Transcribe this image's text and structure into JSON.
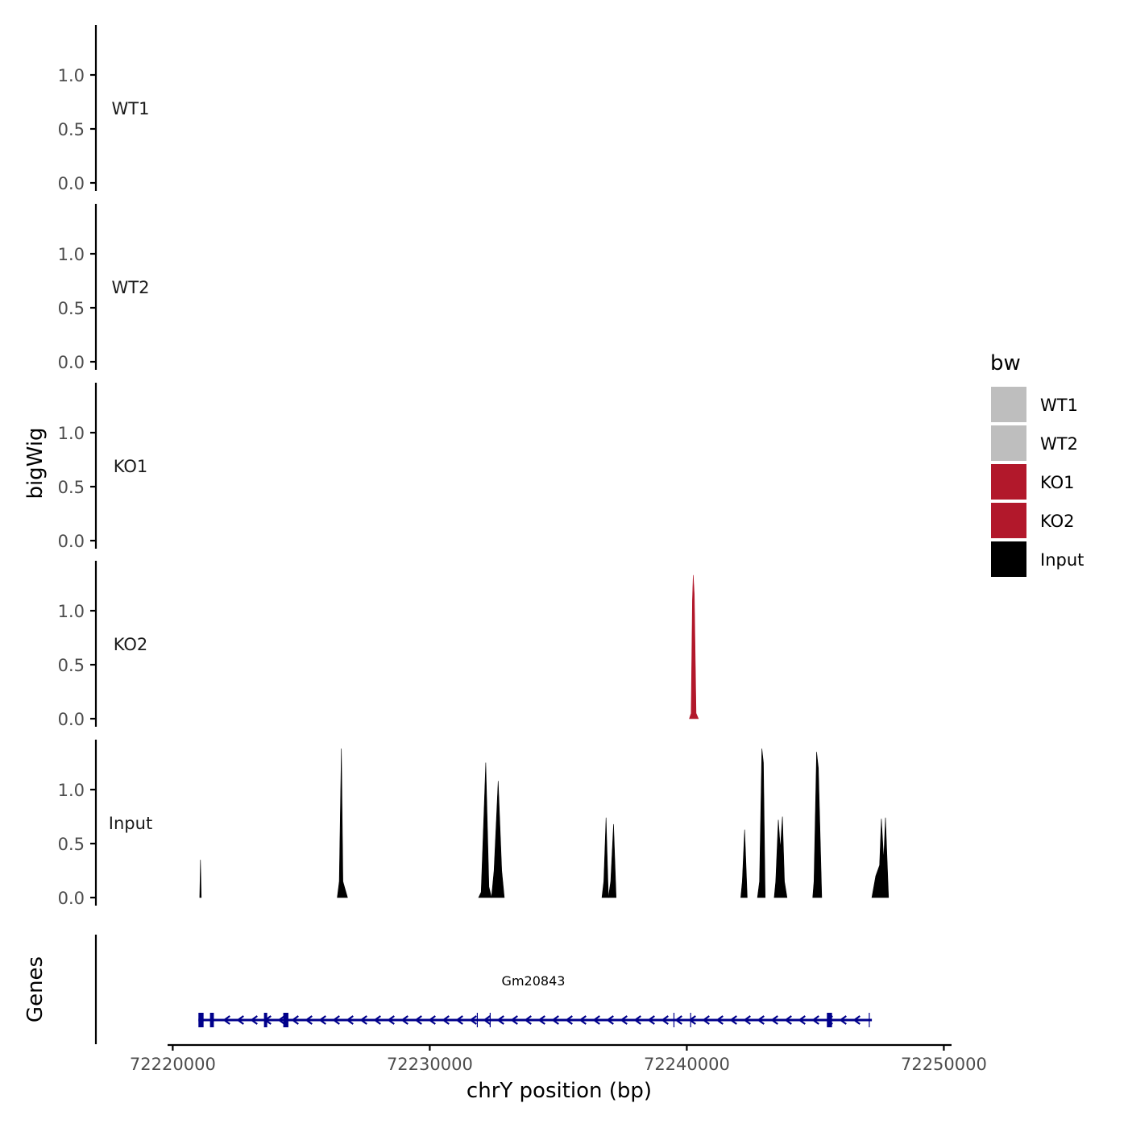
{
  "chart_data": {
    "type": "area",
    "xlabel": "chrY position (bp)",
    "ylabel": "bigWig",
    "genes_label": "Genes",
    "x_range": [
      72219800,
      72250300
    ],
    "x_ticks": [
      72220000,
      72230000,
      72240000,
      72250000
    ],
    "y_range": [
      0,
      1.45
    ],
    "y_ticks": [
      0.0,
      0.5,
      1.0
    ],
    "y_tick_labels": [
      "0.0",
      "0.5",
      "1.0"
    ],
    "legend": {
      "title": "bw",
      "items": [
        {
          "name": "WT1",
          "color": "#bebebe"
        },
        {
          "name": "WT2",
          "color": "#bebebe"
        },
        {
          "name": "KO1",
          "color": "#b2182b"
        },
        {
          "name": "KO2",
          "color": "#b2182b"
        },
        {
          "name": "Input",
          "color": "#000000"
        }
      ]
    },
    "series": [
      {
        "name": "WT1",
        "color": "#bebebe",
        "peaks": []
      },
      {
        "name": "WT2",
        "color": "#bebebe",
        "peaks": []
      },
      {
        "name": "KO1",
        "color": "#b2182b",
        "peaks": []
      },
      {
        "name": "KO2",
        "color": "#b2182b",
        "peaks": [
          {
            "start": 72240100,
            "end": 72240450,
            "points": [
              [
                72240100,
                0.0
              ],
              [
                72240170,
                0.05
              ],
              [
                72240220,
                1.1
              ],
              [
                72240250,
                1.33
              ],
              [
                72240290,
                1.15
              ],
              [
                72240360,
                0.05
              ],
              [
                72240450,
                0.0
              ]
            ]
          }
        ]
      },
      {
        "name": "Input",
        "color": "#000000",
        "peaks": [
          {
            "start": 72221050,
            "end": 72221130,
            "points": [
              [
                72221050,
                0.0
              ],
              [
                72221080,
                0.35
              ],
              [
                72221110,
                0.0
              ]
            ]
          },
          {
            "start": 72226400,
            "end": 72226800,
            "points": [
              [
                72226400,
                0.0
              ],
              [
                72226480,
                0.15
              ],
              [
                72226560,
                1.38
              ],
              [
                72226620,
                0.15
              ],
              [
                72226800,
                0.0
              ]
            ]
          },
          {
            "start": 72231900,
            "end": 72232400,
            "points": [
              [
                72231900,
                0.0
              ],
              [
                72232000,
                0.05
              ],
              [
                72232180,
                1.25
              ],
              [
                72232300,
                0.1
              ],
              [
                72232400,
                0.0
              ]
            ]
          },
          {
            "start": 72232400,
            "end": 72232900,
            "points": [
              [
                72232400,
                0.0
              ],
              [
                72232500,
                0.25
              ],
              [
                72232660,
                1.08
              ],
              [
                72232800,
                0.25
              ],
              [
                72232900,
                0.0
              ]
            ]
          },
          {
            "start": 72236700,
            "end": 72236950,
            "points": [
              [
                72236700,
                0.0
              ],
              [
                72236770,
                0.15
              ],
              [
                72236860,
                0.74
              ],
              [
                72236950,
                0.0
              ]
            ]
          },
          {
            "start": 72236950,
            "end": 72237250,
            "points": [
              [
                72236950,
                0.0
              ],
              [
                72237040,
                0.15
              ],
              [
                72237150,
                0.68
              ],
              [
                72237250,
                0.0
              ]
            ]
          },
          {
            "start": 72242100,
            "end": 72242350,
            "points": [
              [
                72242100,
                0.0
              ],
              [
                72242160,
                0.15
              ],
              [
                72242250,
                0.63
              ],
              [
                72242350,
                0.0
              ]
            ]
          },
          {
            "start": 72242750,
            "end": 72243050,
            "points": [
              [
                72242750,
                0.0
              ],
              [
                72242830,
                0.15
              ],
              [
                72242920,
                1.38
              ],
              [
                72242980,
                1.25
              ],
              [
                72243050,
                0.0
              ]
            ]
          },
          {
            "start": 72243400,
            "end": 72243900,
            "points": [
              [
                72243400,
                0.0
              ],
              [
                72243460,
                0.15
              ],
              [
                72243560,
                0.72
              ],
              [
                72243640,
                0.45
              ],
              [
                72243720,
                0.75
              ],
              [
                72243800,
                0.15
              ],
              [
                72243900,
                0.0
              ]
            ]
          },
          {
            "start": 72244900,
            "end": 72245250,
            "points": [
              [
                72244900,
                0.0
              ],
              [
                72244950,
                0.15
              ],
              [
                72245050,
                1.35
              ],
              [
                72245120,
                1.2
              ],
              [
                72245250,
                0.0
              ]
            ]
          },
          {
            "start": 72247200,
            "end": 72247850,
            "points": [
              [
                72247200,
                0.0
              ],
              [
                72247350,
                0.2
              ],
              [
                72247500,
                0.3
              ],
              [
                72247570,
                0.73
              ],
              [
                72247660,
                0.35
              ],
              [
                72247730,
                0.74
              ],
              [
                72247850,
                0.0
              ]
            ]
          }
        ]
      }
    ],
    "gene_track": {
      "name": "Gm20843",
      "color": "#00008b",
      "strand": "-",
      "start": 72221000,
      "end": 72247200,
      "exons": [
        [
          72221000,
          72221200
        ],
        [
          72221450,
          72221600
        ],
        [
          72223550,
          72223650
        ],
        [
          72224300,
          72224500
        ],
        [
          72245450,
          72245650
        ]
      ],
      "thin_marks": [
        72231850,
        72232350,
        72239500,
        72240150,
        72247100
      ]
    }
  }
}
